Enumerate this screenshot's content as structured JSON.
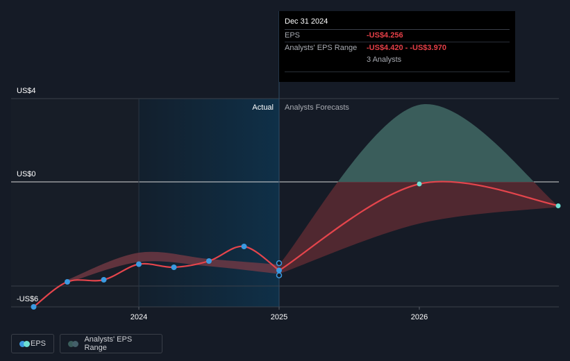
{
  "chart_data": {
    "type": "line",
    "y_ticks": [
      {
        "label": "US$4",
        "value": 4
      },
      {
        "label": "US$0",
        "value": 0
      },
      {
        "label": "-US$6",
        "value": -6
      }
    ],
    "x_ticks": [
      {
        "label": "2024",
        "value": 2024.0
      },
      {
        "label": "2025",
        "value": 2025.0
      },
      {
        "label": "2026",
        "value": 2026.0
      }
    ],
    "section_labels": {
      "actual": "Actual",
      "forecast": "Analysts Forecasts"
    },
    "series": [
      {
        "name": "EPS",
        "actual": [
          {
            "x": 2023.25,
            "y": -6.0
          },
          {
            "x": 2023.49,
            "y": -4.8
          },
          {
            "x": 2023.75,
            "y": -4.7
          },
          {
            "x": 2024.0,
            "y": -3.95
          },
          {
            "x": 2024.25,
            "y": -4.1
          },
          {
            "x": 2024.5,
            "y": -3.8
          },
          {
            "x": 2024.75,
            "y": -3.1
          },
          {
            "x": 2025.0,
            "y": -4.25
          }
        ],
        "forecast": [
          {
            "x": 2025.0,
            "y": -4.256
          },
          {
            "x": 2026.0,
            "y": -0.1
          },
          {
            "x": 2027.0,
            "y": -1.15
          }
        ]
      },
      {
        "name": "Analysts' EPS Range",
        "past_band": [
          {
            "x": 2023.49,
            "lo": -4.85,
            "hi": -4.7
          },
          {
            "x": 2024.0,
            "lo": -3.85,
            "hi": -3.4
          },
          {
            "x": 2024.5,
            "lo": -4.05,
            "hi": -3.7
          },
          {
            "x": 2025.0,
            "lo": -4.42,
            "hi": -3.97
          }
        ],
        "forecast_band": [
          {
            "x": 2025.0,
            "lo": -4.42,
            "hi": -3.97
          },
          {
            "x": 2026.0,
            "lo": -2.0,
            "hi": 3.7
          },
          {
            "x": 2027.0,
            "lo": -1.2,
            "hi": -1.2
          }
        ]
      }
    ]
  },
  "tooltip": {
    "date": "Dec 31 2024",
    "eps_label": "EPS",
    "eps_value": "-US$4.256",
    "range_label": "Analysts' EPS Range",
    "range_value": "-US$4.420 - -US$3.970",
    "analysts": "3 Analysts"
  },
  "legend": {
    "eps_label": "EPS",
    "range_label": "Analysts' EPS Range"
  },
  "colors": {
    "background": "#151b26",
    "eps_line": "#e5454c",
    "eps_point": "#3b9ae1",
    "forecast_point": "#6ee0d3",
    "range_past": "#7a3b45",
    "range_upper": "#3a5d5b",
    "range_lower": "#5a2a33",
    "actual_shade": "#0f2a3f"
  }
}
